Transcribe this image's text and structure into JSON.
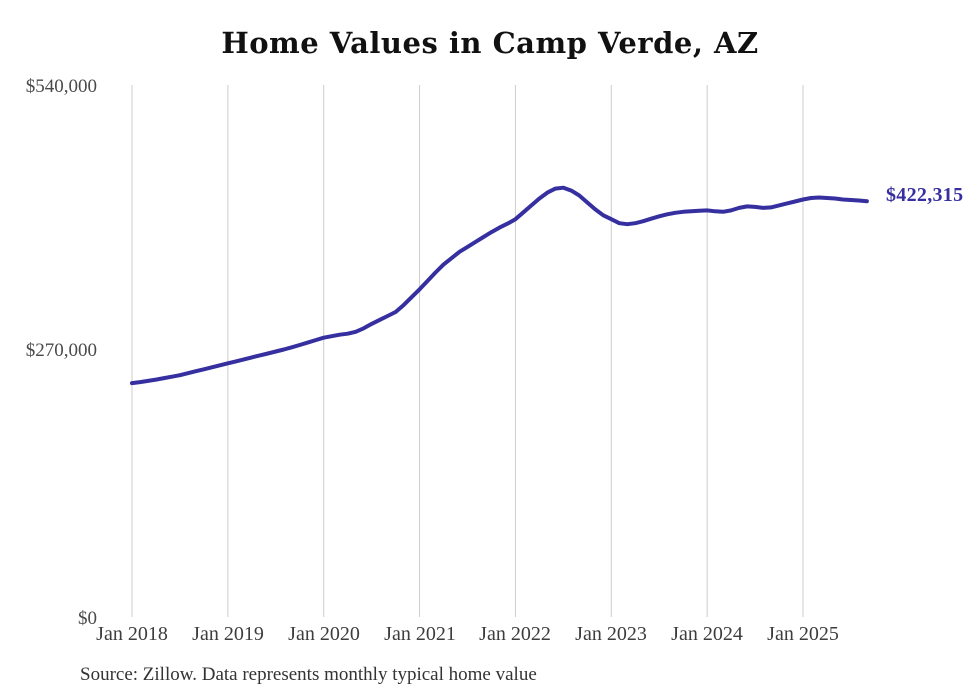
{
  "page": {
    "title": "Home Values in Camp Verde, AZ",
    "source_note": "Source: Zillow. Data represents monthly typical home value"
  },
  "chart_data": {
    "type": "line",
    "title": "Home Values in Camp Verde, AZ",
    "series_name": "Monthly typical home value",
    "unit": "USD",
    "xlabel": "",
    "ylabel": "",
    "ylim": [
      0,
      540000
    ],
    "grid": "vertical-only",
    "legend": "none",
    "y_ticks": [
      "$540,000",
      "$270,000",
      "$0"
    ],
    "y_tick_values": [
      540000,
      270000,
      0
    ],
    "x_ticks": [
      "Jan 2018",
      "Jan 2019",
      "Jan 2020",
      "Jan 2021",
      "Jan 2022",
      "Jan 2023",
      "Jan 2024",
      "Jan 2025"
    ],
    "end_label": "$422,315",
    "end_value": 422315,
    "colors": {
      "line": "#352fa0",
      "end_label": "#352fa0",
      "grid": "#cccccc",
      "tick_text": "#4a4a4a",
      "title_text": "#111111",
      "source_text": "#333333",
      "background": "#ffffff"
    },
    "x": [
      "2018-01",
      "2018-02",
      "2018-03",
      "2018-04",
      "2018-05",
      "2018-06",
      "2018-07",
      "2018-08",
      "2018-09",
      "2018-10",
      "2018-11",
      "2018-12",
      "2019-01",
      "2019-02",
      "2019-03",
      "2019-04",
      "2019-05",
      "2019-06",
      "2019-07",
      "2019-08",
      "2019-09",
      "2019-10",
      "2019-11",
      "2019-12",
      "2020-01",
      "2020-02",
      "2020-03",
      "2020-04",
      "2020-05",
      "2020-06",
      "2020-07",
      "2020-08",
      "2020-09",
      "2020-10",
      "2020-11",
      "2020-12",
      "2021-01",
      "2021-02",
      "2021-03",
      "2021-04",
      "2021-05",
      "2021-06",
      "2021-07",
      "2021-08",
      "2021-09",
      "2021-10",
      "2021-11",
      "2021-12",
      "2022-01",
      "2022-02",
      "2022-03",
      "2022-04",
      "2022-05",
      "2022-06",
      "2022-07",
      "2022-08",
      "2022-09",
      "2022-10",
      "2022-11",
      "2022-12",
      "2023-01",
      "2023-02",
      "2023-03",
      "2023-04",
      "2023-05",
      "2023-06",
      "2023-07",
      "2023-08",
      "2023-09",
      "2023-10",
      "2023-11",
      "2023-12",
      "2024-01",
      "2024-02",
      "2024-03",
      "2024-04",
      "2024-05",
      "2024-06",
      "2024-07",
      "2024-08",
      "2024-09",
      "2024-10",
      "2024-11",
      "2024-12",
      "2025-01",
      "2025-02",
      "2025-03",
      "2025-04",
      "2025-05",
      "2025-06",
      "2025-07",
      "2025-08",
      "2025-09"
    ],
    "values": [
      238000,
      239000,
      240200,
      241500,
      243000,
      244500,
      246000,
      248000,
      250000,
      252000,
      254000,
      256000,
      258000,
      260000,
      262000,
      264000,
      266000,
      268000,
      270000,
      272000,
      274300,
      276600,
      279000,
      281500,
      284000,
      285500,
      287000,
      288000,
      290000,
      293500,
      298000,
      302000,
      306000,
      310000,
      317000,
      325000,
      333000,
      341500,
      350000,
      358000,
      364500,
      371000,
      376000,
      381000,
      386000,
      391000,
      395500,
      399500,
      404000,
      411000,
      418000,
      425000,
      431000,
      435000,
      436000,
      433000,
      428000,
      421000,
      414000,
      408000,
      404000,
      400000,
      399000,
      400000,
      402000,
      404500,
      407000,
      409000,
      410500,
      411500,
      412000,
      412500,
      413000,
      412000,
      411500,
      413000,
      415500,
      417000,
      416500,
      415500,
      416000,
      418000,
      420000,
      422000,
      424000,
      425500,
      426000,
      425500,
      425000,
      424000,
      423500,
      423000,
      422315
    ]
  }
}
